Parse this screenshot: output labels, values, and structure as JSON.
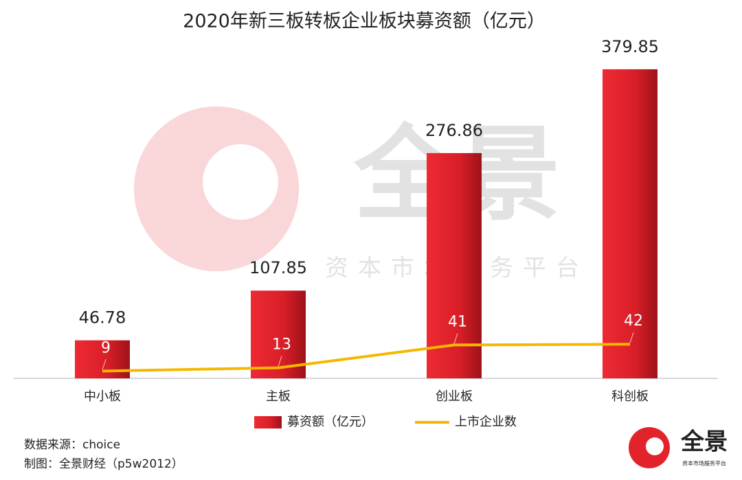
{
  "chart_data": {
    "type": "bar",
    "title": "2020年新三板转板企业板块募资额（亿元）",
    "categories": [
      "中小板",
      "主板",
      "创业板",
      "科创板"
    ],
    "series": [
      {
        "name": "募资额（亿元）",
        "type": "bar",
        "color": "#e3232c",
        "values": [
          46.78,
          107.85,
          276.86,
          379.85
        ]
      },
      {
        "name": "上市企业数",
        "type": "line",
        "color": "#f5b800",
        "axis": "y2",
        "values": [
          9,
          13,
          41,
          42
        ]
      }
    ],
    "ylim": [
      0,
      400
    ],
    "y2lim": [
      0,
      400
    ],
    "legend": "bottom",
    "watermark": {
      "brand": "全景",
      "slogan": "资本市场服务平台"
    },
    "source": "数据来源：choice",
    "credit": "制图：全景财经（p5w2012）",
    "logo": {
      "brand": "全景",
      "slogan": "资本市场服务平台"
    }
  }
}
